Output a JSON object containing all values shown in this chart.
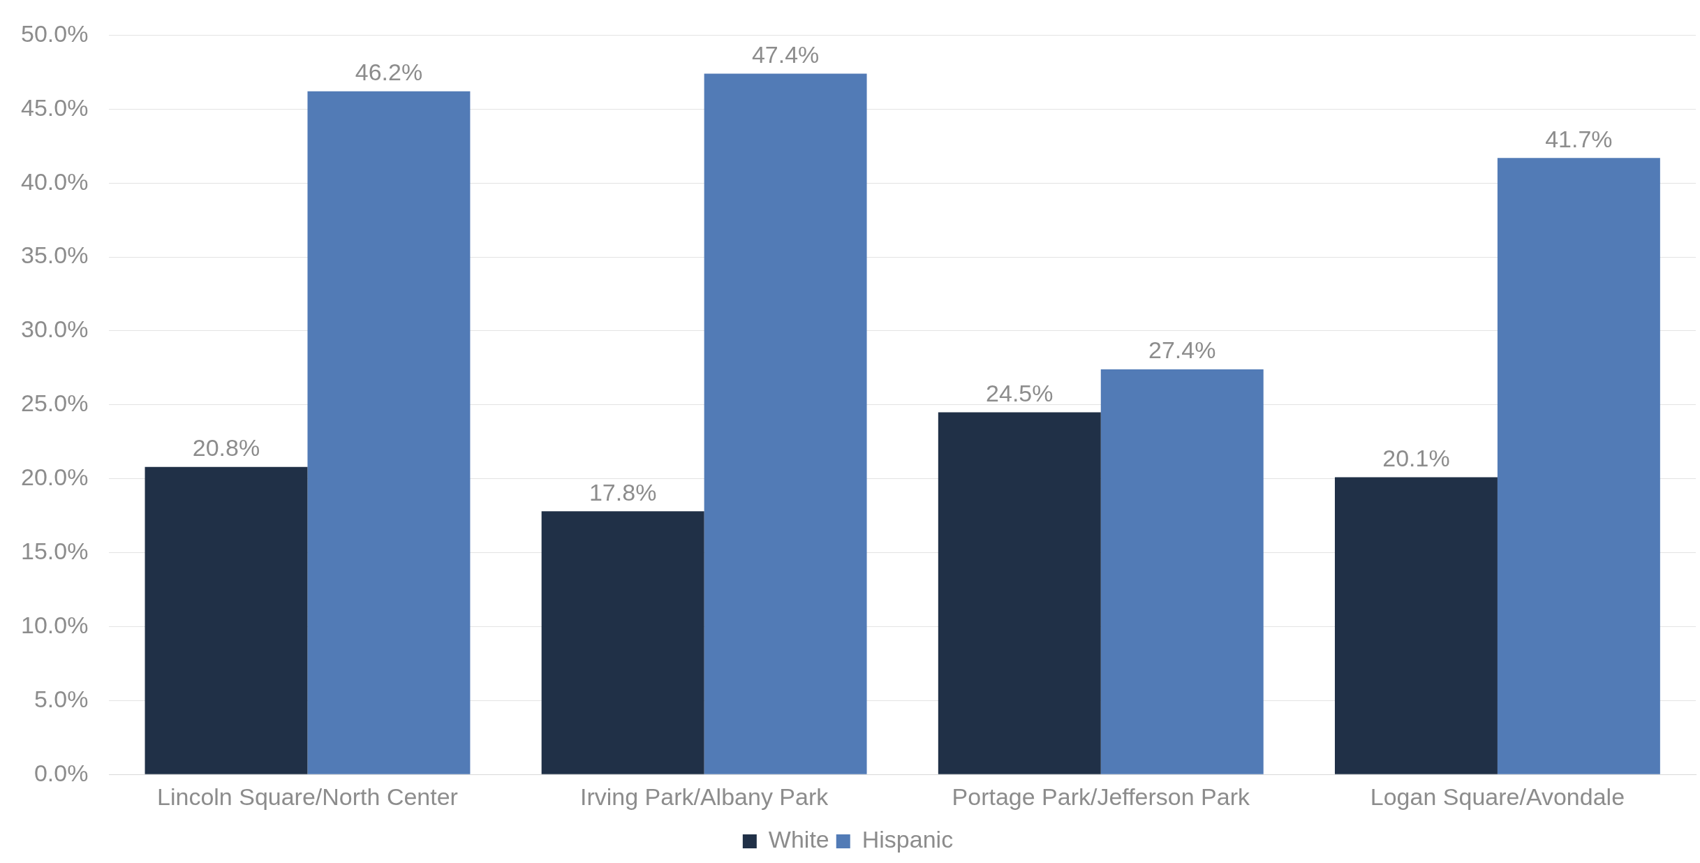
{
  "chart_data": {
    "type": "bar",
    "categories": [
      "Lincoln Square/North Center",
      "Irving Park/Albany Park",
      "Portage Park/Jefferson Park",
      "Logan Square/Avondale"
    ],
    "series": [
      {
        "name": "White",
        "color": "#203047",
        "values": [
          20.8,
          17.8,
          24.5,
          20.1
        ],
        "value_labels": [
          "20.8%",
          "17.8%",
          "24.5%",
          "20.1%"
        ]
      },
      {
        "name": "Hispanic",
        "color": "#527bb6",
        "values": [
          46.2,
          47.4,
          27.4,
          41.7
        ],
        "value_labels": [
          "46.2%",
          "47.4%",
          "27.4%",
          "41.7%"
        ]
      }
    ],
    "ylim": [
      0,
      50
    ],
    "yticks": [
      {
        "value": 0,
        "label": "0.0%"
      },
      {
        "value": 5,
        "label": "5.0%"
      },
      {
        "value": 10,
        "label": "10.0%"
      },
      {
        "value": 15,
        "label": "15.0%"
      },
      {
        "value": 20,
        "label": "20.0%"
      },
      {
        "value": 25,
        "label": "25.0%"
      },
      {
        "value": 30,
        "label": "30.0%"
      },
      {
        "value": 35,
        "label": "35.0%"
      },
      {
        "value": 40,
        "label": "40.0%"
      },
      {
        "value": 45,
        "label": "45.0%"
      },
      {
        "value": 50,
        "label": "50.0%"
      }
    ],
    "grid": "y",
    "legend": "bottom"
  }
}
